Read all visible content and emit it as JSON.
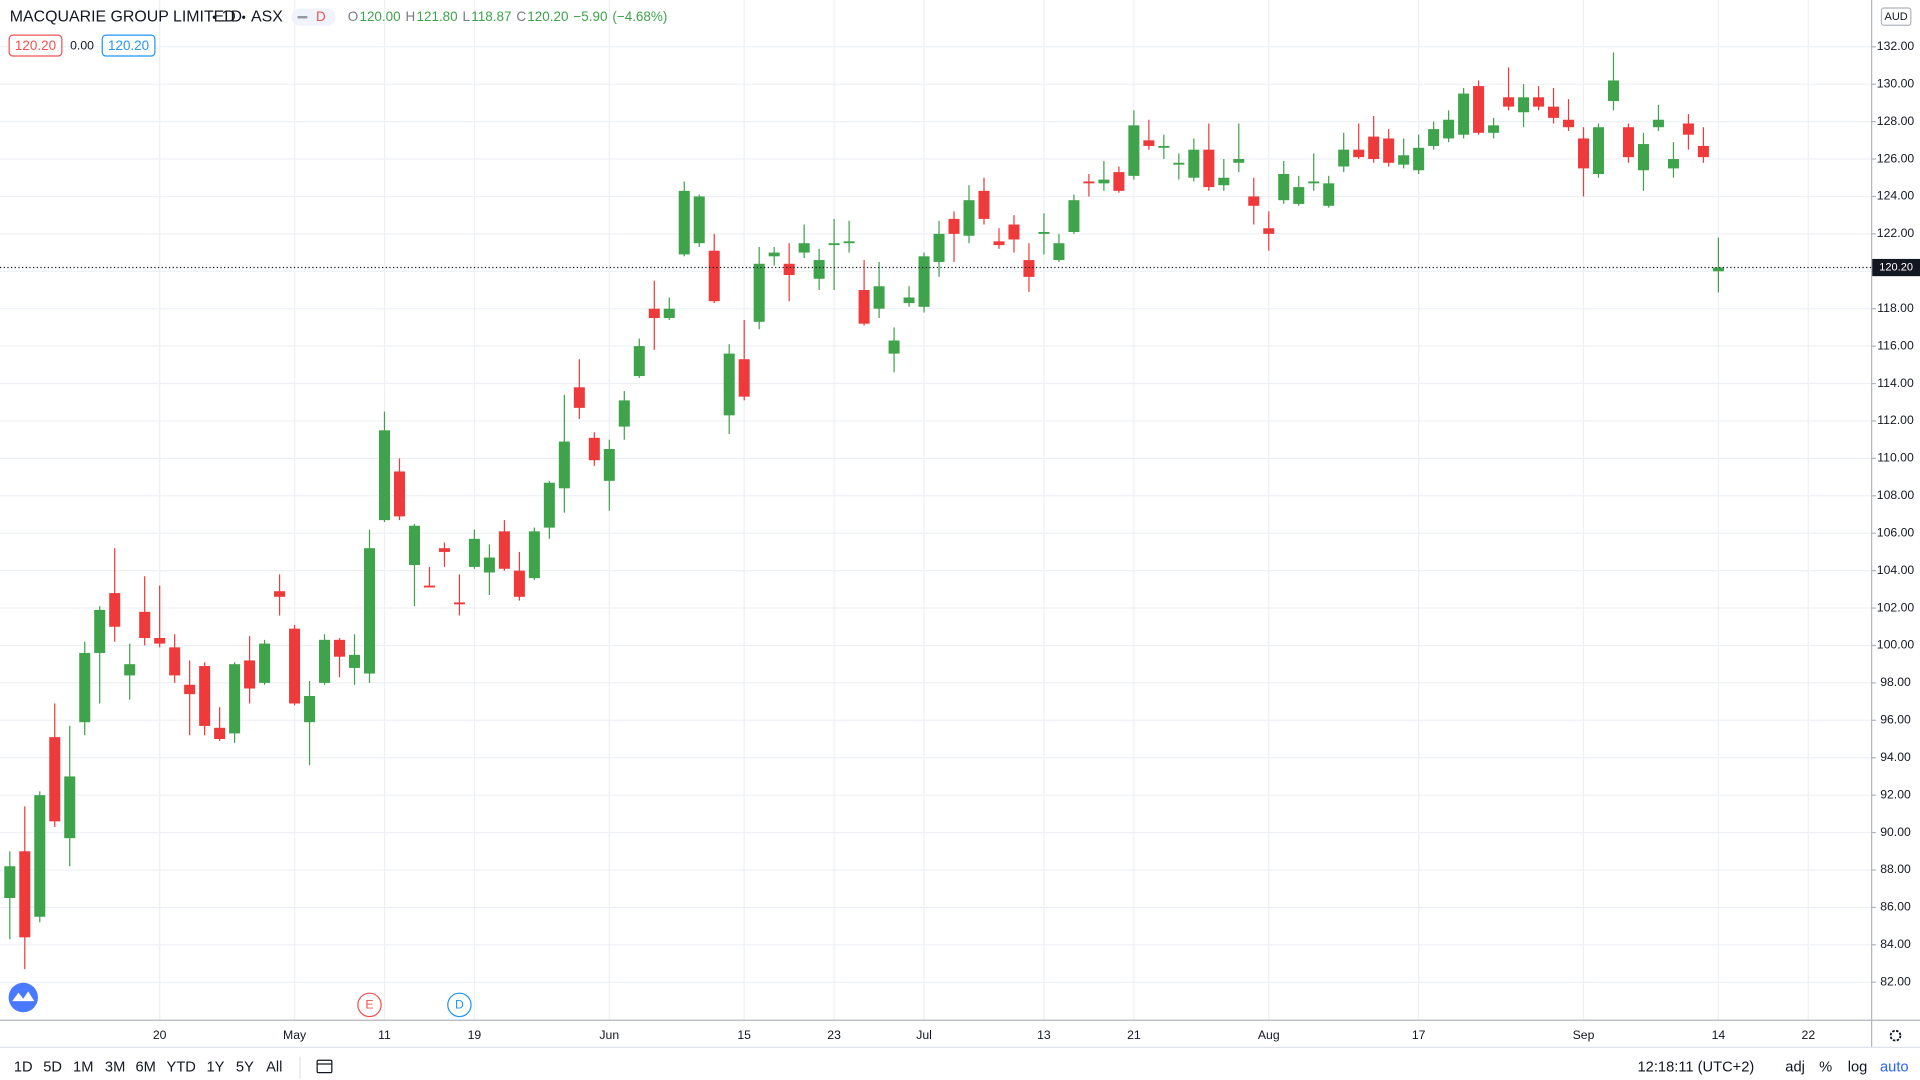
{
  "header": {
    "symbol": "MACQUARIE GROUP LIMITED",
    "interval": "1D",
    "exchange": "ASX",
    "badge": "D",
    "ohlc": [
      {
        "label": "O",
        "value": "120.00"
      },
      {
        "label": "H",
        "value": "121.80"
      },
      {
        "label": "L",
        "value": "118.87"
      },
      {
        "label": "C",
        "value": "120.20"
      }
    ],
    "change": "−5.90",
    "change_pct": "(−4.68%)",
    "bid": "120.20",
    "spread": "0.00",
    "ask": "120.20"
  },
  "chart_data": {
    "type": "candlestick",
    "currency": "AUD",
    "categories": [
      null,
      null,
      null,
      null,
      null,
      null,
      null,
      null,
      null,
      null,
      "20",
      null,
      null,
      null,
      null,
      null,
      null,
      null,
      null,
      "May",
      null,
      null,
      null,
      null,
      null,
      "11",
      null,
      null,
      null,
      null,
      null,
      "19",
      null,
      null,
      null,
      null,
      null,
      null,
      null,
      null,
      "Jun",
      null,
      null,
      null,
      null,
      null,
      null,
      null,
      null,
      "15",
      null,
      null,
      null,
      null,
      null,
      "23",
      null,
      null,
      null,
      null,
      null,
      "Jul",
      null,
      null,
      null,
      null,
      null,
      null,
      null,
      "13",
      null,
      null,
      null,
      null,
      null,
      "21",
      null,
      null,
      null,
      null,
      null,
      null,
      null,
      null,
      "Aug",
      null,
      null,
      null,
      null,
      null,
      null,
      null,
      null,
      null,
      "17",
      null,
      null,
      null,
      null,
      null,
      null,
      null,
      null,
      null,
      null,
      "Sep",
      null,
      null,
      null,
      null,
      null,
      null,
      null,
      null,
      "14",
      null,
      null,
      null,
      null,
      null,
      "22",
      null,
      null,
      null,
      null
    ],
    "open": [
      86.5,
      89,
      85.5,
      95.1,
      89.7,
      95.9,
      99.6,
      102.8,
      98.4,
      101.8,
      100.4,
      99.9,
      97.9,
      98.9,
      95.6,
      95.3,
      99.2,
      98,
      102.9,
      100.9,
      95.9,
      98,
      100.3,
      98.8,
      98.5,
      106.7,
      109.3,
      104.3,
      103.2,
      105.2,
      102.3,
      104.2,
      103.9,
      106.1,
      104,
      103.6,
      106.3,
      108.4,
      113.8,
      111.1,
      108.8,
      111.7,
      114.4,
      118,
      117.5,
      120.9,
      121.5,
      121.1,
      112.3,
      115.3,
      117.3,
      120.8,
      120.4,
      121,
      119.6,
      121.4,
      121.5,
      119,
      118,
      115.6,
      118.3,
      118.1,
      120.5,
      122.8,
      121.9,
      124.3,
      121.6,
      122.5,
      120.6,
      122,
      120.6,
      122.1,
      124.8,
      124.7,
      125.3,
      125.1,
      127,
      126.6,
      125.7,
      125,
      126.5,
      124.6,
      125.8,
      124,
      122.3,
      123.8,
      123.6,
      124.7,
      123.5,
      125.6,
      126.5,
      127.2,
      127.1,
      125.7,
      125.4,
      126.7,
      127.1,
      127.3,
      129.9,
      127.4,
      129.3,
      128.5,
      129.3,
      128.8,
      128.1,
      127.1,
      125.2,
      129.1,
      127.7,
      125.4,
      127.7,
      125.5,
      127.9,
      126.7,
      120,
      null,
      null,
      null,
      null,
      null,
      null,
      null,
      null,
      null,
      null
    ],
    "high": [
      89,
      91.4,
      92.2,
      96.9,
      95.7,
      100.2,
      102.1,
      105.2,
      100.1,
      103.7,
      103.2,
      100.6,
      99.2,
      99.1,
      96.7,
      99.1,
      100.5,
      100.3,
      103.8,
      101.1,
      98.1,
      100.6,
      100.4,
      100.6,
      106.2,
      112.5,
      110,
      106.5,
      104.2,
      105.5,
      103.8,
      106.2,
      105.4,
      106.7,
      105,
      106.3,
      108.8,
      113.4,
      115.3,
      111.4,
      111,
      113.6,
      116.4,
      119.5,
      118.6,
      124.8,
      124.1,
      122,
      116.1,
      117.4,
      121.3,
      121.3,
      121.5,
      122.5,
      121.2,
      122.8,
      122.7,
      120.6,
      120.5,
      117,
      119.2,
      121,
      122.7,
      123.2,
      124.6,
      125,
      122.3,
      123,
      121.5,
      123.1,
      122,
      124.1,
      125.2,
      125.9,
      125.6,
      128.6,
      128.1,
      127.3,
      126.3,
      127.1,
      127.9,
      126,
      127.9,
      125,
      123.2,
      125.9,
      125.1,
      126.3,
      125.1,
      127.4,
      127.9,
      128.3,
      127.6,
      127.1,
      127.3,
      128,
      128.6,
      129.8,
      130.2,
      128.2,
      130.9,
      130,
      129.9,
      129.8,
      129.2,
      127.7,
      127.9,
      131.7,
      127.9,
      127.4,
      128.9,
      126.9,
      128.4,
      127.7,
      121.8,
      null,
      null,
      null,
      null,
      null,
      null,
      null,
      null,
      null,
      null
    ],
    "low": [
      84.3,
      82.7,
      85.2,
      90.3,
      88.2,
      95.2,
      96.9,
      100.2,
      97.1,
      100,
      99.9,
      98,
      95.2,
      95.2,
      94.9,
      94.8,
      96.9,
      97.9,
      101.6,
      96.8,
      93.6,
      97.9,
      98.3,
      97.9,
      98,
      106.6,
      106.7,
      102.1,
      103.1,
      104.2,
      101.6,
      104.1,
      102.7,
      104,
      102.4,
      103.5,
      105.7,
      107.1,
      112.1,
      109.6,
      107.2,
      111,
      114.3,
      115.8,
      117.4,
      120.8,
      121.3,
      118.3,
      111.3,
      113.1,
      116.9,
      120.3,
      118.4,
      120.7,
      119,
      119,
      121,
      117.1,
      117.5,
      114.6,
      118.1,
      117.8,
      119.7,
      120.5,
      121.5,
      122.5,
      121.2,
      121,
      118.9,
      120.9,
      120.5,
      122,
      124,
      124.3,
      124.2,
      124.9,
      126.5,
      126,
      124.9,
      124.8,
      124.3,
      124.3,
      125.3,
      122.5,
      121.1,
      123.6,
      123.5,
      124.3,
      123.4,
      125.3,
      126,
      125.8,
      125.6,
      125.5,
      125.2,
      126.5,
      126.9,
      127.1,
      127.3,
      127.1,
      128.6,
      127.7,
      128.6,
      127.9,
      127.5,
      124,
      125,
      128.6,
      125.8,
      124.3,
      127.5,
      125,
      126.5,
      125.8,
      118.87,
      null,
      null,
      null,
      null,
      null,
      null,
      null,
      null,
      null,
      null
    ],
    "close": [
      88.2,
      84.4,
      92,
      90.6,
      93,
      99.6,
      101.9,
      101,
      99,
      100.4,
      100.1,
      98.4,
      97.4,
      95.7,
      95,
      99,
      97.7,
      100.1,
      102.6,
      96.9,
      97.3,
      100.3,
      99.4,
      99.5,
      105.2,
      111.5,
      106.9,
      106.4,
      103.1,
      105,
      102.2,
      105.7,
      104.7,
      104.1,
      102.6,
      106.1,
      108.7,
      110.9,
      112.7,
      109.9,
      110.5,
      113.1,
      116,
      117.5,
      118,
      124.3,
      124,
      118.4,
      115.6,
      113.3,
      120.4,
      121,
      119.8,
      121.5,
      120.6,
      121.5,
      121.6,
      117.2,
      119.2,
      116.3,
      118.6,
      120.8,
      122,
      122,
      123.8,
      122.8,
      121.4,
      121.7,
      119.7,
      122.1,
      121.5,
      123.8,
      124.7,
      124.9,
      124.3,
      127.8,
      126.7,
      126.7,
      125.8,
      126.5,
      124.5,
      125,
      126,
      123.5,
      122,
      125.2,
      124.5,
      124.8,
      124.7,
      126.5,
      126.1,
      126,
      125.8,
      126.2,
      126.6,
      127.6,
      128.1,
      129.5,
      127.4,
      127.8,
      128.8,
      129.3,
      128.8,
      128.2,
      127.7,
      125.5,
      127.7,
      130.2,
      126.1,
      126.8,
      128.1,
      126,
      127.3,
      126.1,
      120.2,
      null,
      null,
      null,
      null,
      null,
      null,
      null,
      null,
      null,
      null
    ],
    "up_color": "#3ea34a",
    "down_color": "#ee3a3a",
    "ylim": [
      80.0,
      134.5
    ],
    "yticks": [
      {
        "value": 82,
        "label": "82.00"
      },
      {
        "value": 84,
        "label": "84.00"
      },
      {
        "value": 86,
        "label": "86.00"
      },
      {
        "value": 88,
        "label": "88.00"
      },
      {
        "value": 90,
        "label": "90.00"
      },
      {
        "value": 92,
        "label": "92.00"
      },
      {
        "value": 94,
        "label": "94.00"
      },
      {
        "value": 96,
        "label": "96.00"
      },
      {
        "value": 98,
        "label": "98.00"
      },
      {
        "value": 100,
        "label": "100.00"
      },
      {
        "value": 102,
        "label": "102.00"
      },
      {
        "value": 104,
        "label": "104.00"
      },
      {
        "value": 106,
        "label": "106.00"
      },
      {
        "value": 108,
        "label": "108.00"
      },
      {
        "value": 110,
        "label": "110.00"
      },
      {
        "value": 112,
        "label": "112.00"
      },
      {
        "value": 114,
        "label": "114.00"
      },
      {
        "value": 116,
        "label": "116.00"
      },
      {
        "value": 118,
        "label": "118.00"
      },
      {
        "value": 120,
        "label": "120.00"
      },
      {
        "value": 122,
        "label": "122.00"
      },
      {
        "value": 124,
        "label": "124.00"
      },
      {
        "value": 126,
        "label": "126.00"
      },
      {
        "value": 128,
        "label": "128.00"
      },
      {
        "value": 130,
        "label": "130.00"
      },
      {
        "value": 132,
        "label": "132.00"
      }
    ],
    "grid": true,
    "last_price": {
      "value": 120.2,
      "label": "120.20"
    },
    "events": [
      {
        "label": "E",
        "index": 24,
        "color": "#ef5350"
      },
      {
        "label": "D",
        "index": 30,
        "color": "#2196f3"
      }
    ]
  },
  "toolbar": {
    "ranges": [
      "1D",
      "5D",
      "1M",
      "3M",
      "6M",
      "YTD",
      "1Y",
      "5Y",
      "All"
    ],
    "time": "12:18:11 (UTC+2)",
    "options": [
      "adj",
      "%",
      "log",
      "auto"
    ]
  }
}
